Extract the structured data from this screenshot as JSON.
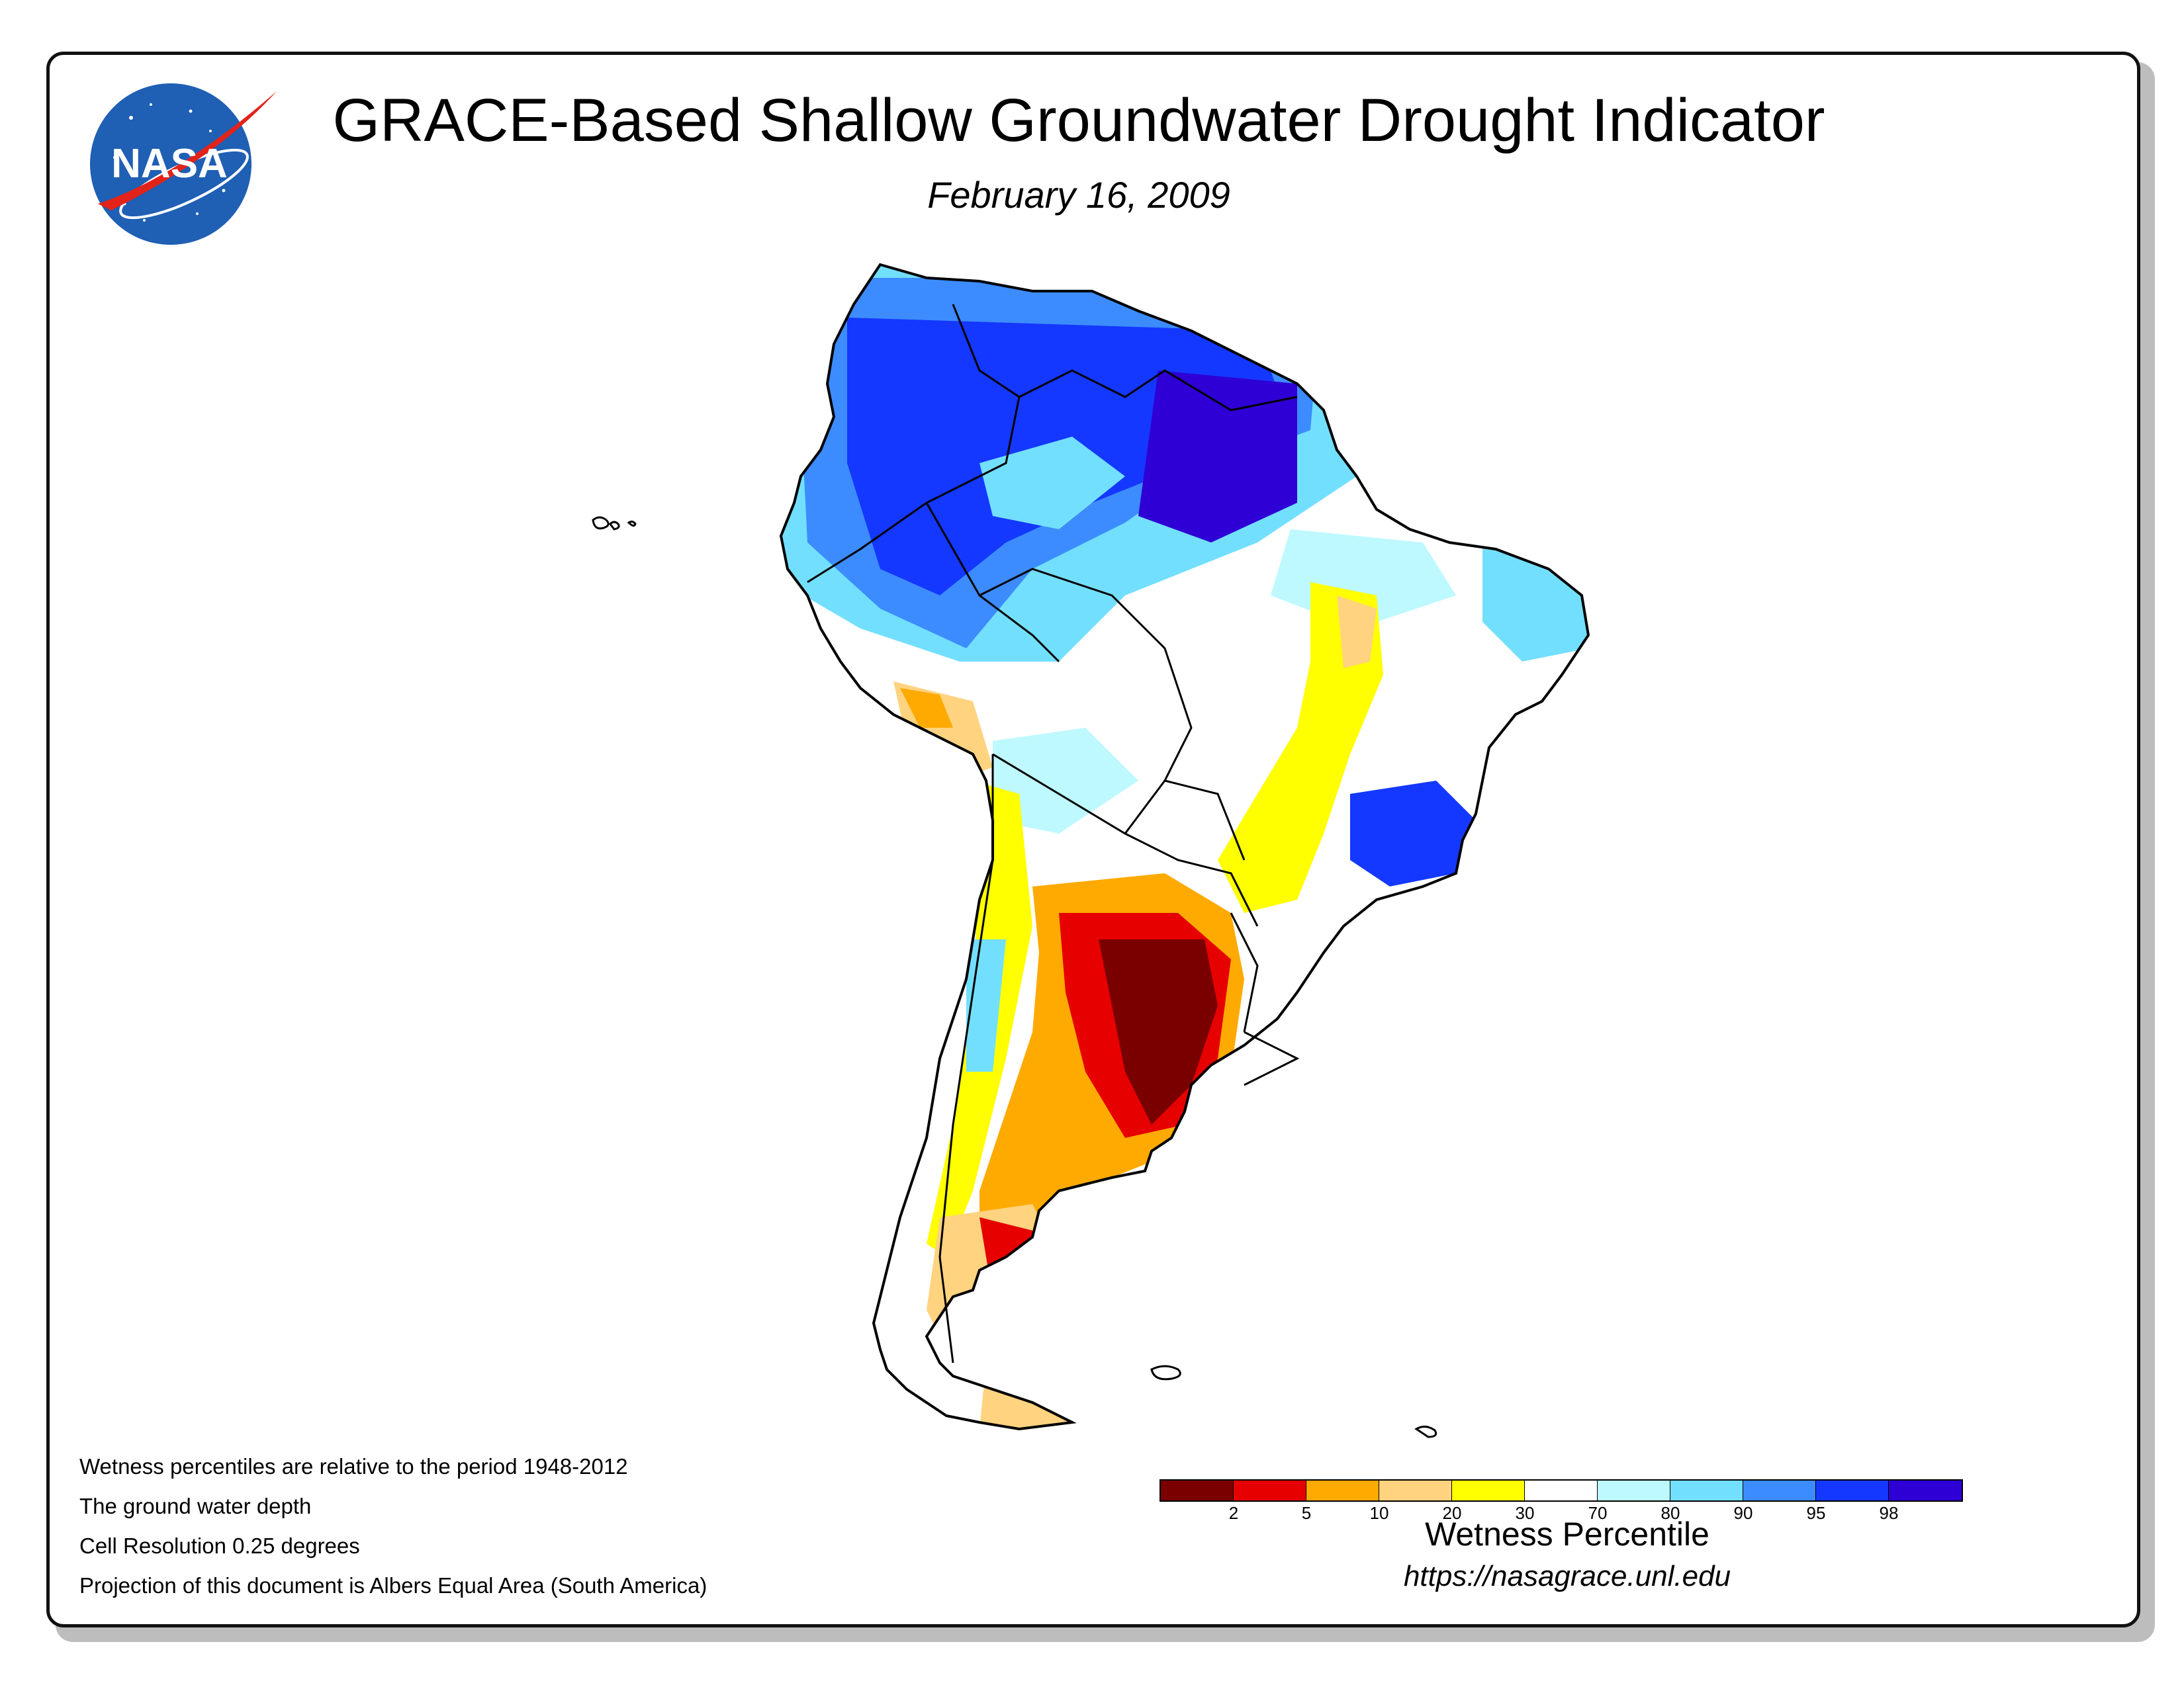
{
  "header": {
    "title": "GRACE-Based Shallow Groundwater Drought Indicator",
    "date": "February 16, 2009"
  },
  "logo": {
    "text": "NASA",
    "icon": "nasa-meatball-logo",
    "colors": {
      "circle": "#1f5fb4",
      "vector": "#e2231a",
      "text": "#ffffff"
    }
  },
  "notes": [
    "Wetness percentiles are relative to the period 1948-2012",
    "The ground water depth",
    "Cell Resolution 0.25 degrees",
    "Projection of this document is Albers Equal Area (South America)"
  ],
  "legend": {
    "title": "Wetness Percentile",
    "url": "https://nasagrace.unl.edu",
    "colors": [
      "#7a0000",
      "#e60000",
      "#ffaa00",
      "#ffd37f",
      "#ffff00",
      "#ffffff",
      "#bef9ff",
      "#73dfff",
      "#3c8cff",
      "#1438ff",
      "#2e00d6"
    ],
    "ticks": [
      "2",
      "5",
      "10",
      "20",
      "30",
      "70",
      "80",
      "90",
      "95",
      "98"
    ]
  },
  "map": {
    "region": "South America",
    "outline_color": "#000000",
    "regions": [
      {
        "name": "wet-north",
        "percentile_class": "95-98",
        "color": "#1438ff"
      },
      {
        "name": "wet-amazon-core",
        "percentile_class": "98-100",
        "color": "#2e00d6"
      },
      {
        "name": "moist-northeast",
        "percentile_class": "80-90",
        "color": "#73dfff"
      },
      {
        "name": "normal-central",
        "percentile_class": "30-70",
        "color": "#ffffff"
      },
      {
        "name": "dry-central-brazil",
        "percentile_class": "20-30",
        "color": "#ffff00"
      },
      {
        "name": "wet-southeast-brazil",
        "percentile_class": "95-98",
        "color": "#1438ff"
      },
      {
        "name": "dry-peru",
        "percentile_class": "10-20",
        "color": "#ffd37f"
      },
      {
        "name": "drought-argentina",
        "percentile_class": "0-2",
        "color": "#7a0000"
      },
      {
        "name": "severe-argentina",
        "percentile_class": "2-5",
        "color": "#e60000"
      },
      {
        "name": "moderate-argentina",
        "percentile_class": "5-10",
        "color": "#ffaa00"
      },
      {
        "name": "dry-patagonia",
        "percentile_class": "20-30",
        "color": "#ffff00"
      }
    ]
  }
}
